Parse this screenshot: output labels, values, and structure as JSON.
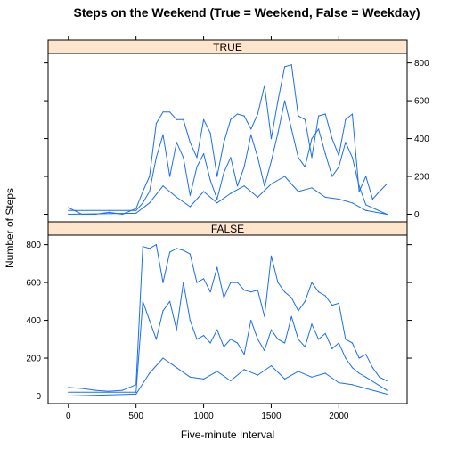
{
  "chart_data": {
    "type": "line",
    "title": "Steps on the Weekend (True = Weekend, False = Weekday)",
    "xlabel": "Five-minute Interval",
    "ylabel": "Number of Steps",
    "xlim": [
      -150,
      2505
    ],
    "ylim": [
      -40,
      850
    ],
    "x_ticks": [
      0,
      500,
      1000,
      1500,
      2000
    ],
    "y_ticks": [
      0,
      200,
      400,
      600,
      800
    ],
    "grid": false,
    "line_color": "#1a6ef5",
    "strip_color": "#ffe5cc",
    "panels": [
      {
        "label": "TRUE",
        "y_axis_side": "right",
        "series": [
          {
            "x": [
              0,
              100,
              200,
              300,
              400,
              500,
              550,
              600,
              650,
              700,
              750,
              800,
              850,
              900,
              950,
              1000,
              1050,
              1100,
              1150,
              1200,
              1250,
              1300,
              1350,
              1400,
              1450,
              1500,
              1550,
              1600,
              1650,
              1700,
              1750,
              1800,
              1850,
              1900,
              1950,
              2000,
              2050,
              2100,
              2150,
              2200,
              2250,
              2300,
              2355
            ],
            "values": [
              35,
              0,
              0,
              10,
              0,
              30,
              120,
              200,
              480,
              540,
              540,
              500,
              500,
              380,
              300,
              500,
              430,
              200,
              380,
              500,
              530,
              520,
              450,
              530,
              680,
              400,
              600,
              780,
              790,
              520,
              500,
              300,
              520,
              530,
              400,
              310,
              500,
              530,
              120,
              200,
              80,
              120,
              160
            ]
          },
          {
            "x": [
              0,
              300,
              500,
              550,
              600,
              650,
              700,
              750,
              800,
              850,
              900,
              950,
              1000,
              1050,
              1100,
              1150,
              1200,
              1250,
              1300,
              1350,
              1400,
              1450,
              1500,
              1550,
              1600,
              1650,
              1700,
              1750,
              1800,
              1850,
              1900,
              1950,
              2000,
              2050,
              2100,
              2150,
              2200,
              2355
            ],
            "values": [
              20,
              20,
              20,
              60,
              120,
              300,
              420,
              200,
              380,
              300,
              100,
              250,
              320,
              180,
              80,
              220,
              300,
              150,
              250,
              420,
              300,
              150,
              280,
              430,
              600,
              450,
              300,
              250,
              400,
              450,
              320,
              200,
              250,
              380,
              300,
              150,
              50,
              0
            ]
          },
          {
            "x": [
              0,
              500,
              600,
              700,
              800,
              900,
              1000,
              1100,
              1200,
              1300,
              1400,
              1500,
              1600,
              1700,
              1800,
              1900,
              2000,
              2100,
              2200,
              2355
            ],
            "values": [
              0,
              5,
              60,
              150,
              90,
              40,
              120,
              60,
              110,
              150,
              90,
              160,
              200,
              120,
              140,
              90,
              80,
              60,
              20,
              0
            ]
          }
        ]
      },
      {
        "label": "FALSE",
        "y_axis_side": "left",
        "series": [
          {
            "x": [
              0,
              100,
              200,
              300,
              400,
              500,
              550,
              600,
              650,
              700,
              750,
              800,
              850,
              900,
              950,
              1000,
              1050,
              1100,
              1150,
              1200,
              1250,
              1300,
              1350,
              1400,
              1450,
              1500,
              1550,
              1600,
              1650,
              1700,
              1750,
              1800,
              1850,
              1900,
              1950,
              2000,
              2050,
              2100,
              2150,
              2200,
              2250,
              2300,
              2355
            ],
            "values": [
              45,
              40,
              30,
              25,
              30,
              60,
              790,
              780,
              800,
              600,
              760,
              780,
              770,
              750,
              600,
              620,
              550,
              680,
              520,
              600,
              600,
              560,
              550,
              560,
              420,
              740,
              600,
              550,
              520,
              450,
              500,
              600,
              550,
              530,
              480,
              490,
              300,
              280,
              200,
              220,
              150,
              100,
              80
            ]
          },
          {
            "x": [
              0,
              500,
              550,
              600,
              650,
              700,
              750,
              800,
              850,
              900,
              950,
              1000,
              1050,
              1100,
              1150,
              1200,
              1250,
              1300,
              1350,
              1400,
              1450,
              1500,
              1550,
              1600,
              1650,
              1700,
              1750,
              1800,
              1850,
              1900,
              1950,
              2000,
              2050,
              2100,
              2150,
              2200,
              2355
            ],
            "values": [
              20,
              20,
              500,
              400,
              300,
              450,
              500,
              350,
              600,
              400,
              300,
              320,
              280,
              350,
              260,
              300,
              280,
              220,
              400,
              300,
              240,
              350,
              300,
              280,
              420,
              300,
              260,
              380,
              300,
              330,
              250,
              280,
              200,
              150,
              120,
              100,
              30
            ]
          },
          {
            "x": [
              0,
              500,
              600,
              700,
              800,
              900,
              1000,
              1100,
              1200,
              1300,
              1400,
              1500,
              1600,
              1700,
              1800,
              1900,
              2000,
              2100,
              2200,
              2355
            ],
            "values": [
              0,
              10,
              120,
              200,
              150,
              100,
              90,
              130,
              80,
              140,
              110,
              160,
              90,
              130,
              100,
              120,
              70,
              60,
              40,
              10
            ]
          }
        ]
      }
    ]
  }
}
